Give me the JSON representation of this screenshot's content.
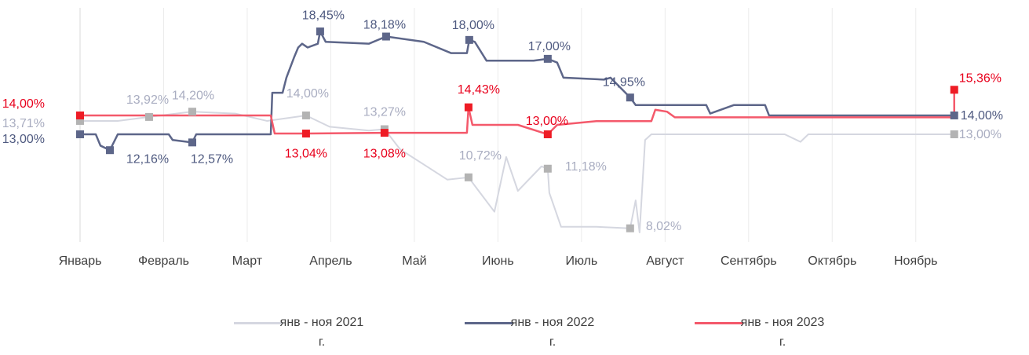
{
  "chart_data": {
    "type": "line",
    "categories": [
      "Январь",
      "Февраль",
      "Март",
      "Апрель",
      "Май",
      "Июнь",
      "Июль",
      "Август",
      "Сентябрь",
      "Октябрь",
      "Ноябрь"
    ],
    "xlim": [
      0,
      10.5
    ],
    "ylim": [
      7.3,
      19.7
    ],
    "grid": true,
    "series": [
      {
        "name": "янв - ноя 2021 г.",
        "color": "#d5d7e0",
        "marker_color": "#b3b3b3",
        "label_color": "#a9adc1",
        "x": [
          0,
          0.451,
          0.826,
          1.343,
          1.858,
          2.235,
          2.704,
          2.986,
          3.455,
          3.643,
          3.831,
          4.113,
          4.394,
          4.648,
          4.77,
          4.958,
          5.099,
          5.239,
          5.521,
          5.596,
          5.615,
          5.756,
          6.178,
          6.582,
          6.648,
          6.695,
          6.761,
          6.836,
          8.432,
          8.62,
          8.714,
          10.46
        ],
        "values": [
          13.71,
          13.71,
          13.92,
          14.2,
          14.1,
          13.71,
          14.0,
          13.4,
          13.2,
          13.27,
          12.2,
          11.4,
          10.6,
          10.72,
          10.0,
          8.9,
          11.8,
          10.0,
          11.3,
          11.18,
          9.9,
          8.1,
          8.1,
          8.02,
          9.5,
          7.8,
          12.7,
          13.0,
          13.0,
          12.6,
          13.0,
          13.0
        ],
        "points": {
          "x": [
            0,
            0.826,
            1.343,
            2.704,
            3.643,
            4.648,
            5.596,
            6.582,
            10.46
          ],
          "values": [
            13.71,
            13.92,
            14.2,
            14.0,
            13.27,
            10.72,
            11.18,
            8.02,
            13.0
          ],
          "value_labels": [
            "13,71%",
            "13,92%",
            "14,20%",
            "14,00%",
            "13,27%",
            "10,72%",
            "11,18%",
            "8,02%",
            "13,00%"
          ]
        }
      },
      {
        "name": "янв - ноя 2022 г.",
        "color": "#5d6689",
        "marker_color": "#5d6689",
        "label_color": "#4f5a80",
        "x": [
          0,
          0.188,
          0.244,
          0.357,
          0.451,
          1.061,
          1.108,
          1.343,
          1.39,
          2.282,
          2.3,
          2.423,
          2.469,
          2.563,
          2.61,
          2.657,
          2.723,
          2.845,
          2.873,
          2.939,
          3.455,
          3.662,
          4.113,
          4.441,
          4.629,
          4.657,
          4.723,
          4.864,
          5.427,
          5.596,
          5.709,
          5.784,
          6.272,
          6.347,
          6.582,
          6.648,
          7.493,
          7.54,
          7.822,
          8.197,
          8.244,
          10.46
        ],
        "values": [
          13.0,
          13.0,
          12.4,
          12.16,
          13.0,
          13.0,
          12.7,
          12.57,
          13.0,
          13.0,
          15.2,
          15.2,
          16.0,
          17.1,
          17.6,
          17.8,
          17.6,
          17.8,
          18.45,
          17.9,
          17.8,
          18.18,
          17.9,
          17.3,
          17.3,
          18.0,
          17.9,
          16.9,
          16.9,
          17.0,
          16.8,
          16.0,
          15.9,
          16.0,
          14.95,
          14.55,
          14.55,
          14.1,
          14.55,
          14.55,
          14.0,
          14.0
        ],
        "points": {
          "x": [
            0,
            0.357,
            1.343,
            2.873,
            3.662,
            4.657,
            5.596,
            6.582,
            10.46
          ],
          "values": [
            13.0,
            12.16,
            12.57,
            18.45,
            18.18,
            18.0,
            17.0,
            14.95,
            14.0
          ],
          "value_labels": [
            "13,00%",
            "12,16%",
            "12,57%",
            "18,45%",
            "18,18%",
            "18,00%",
            "17,00%",
            "14,95%",
            "14,00%"
          ]
        }
      },
      {
        "name": "янв - ноя 2023 г.",
        "color": "#f4596b",
        "marker_color": "#ee1c25",
        "label_color": "#e8001c",
        "x": [
          0,
          2.282,
          2.329,
          2.704,
          3.643,
          4.629,
          4.648,
          4.695,
          5.239,
          5.596,
          5.709,
          6.178,
          6.836,
          6.883,
          7.023,
          7.117,
          10.46,
          10.46
        ],
        "values": [
          14.0,
          14.0,
          13.04,
          13.04,
          13.08,
          13.08,
          14.43,
          13.5,
          13.5,
          13.0,
          13.5,
          13.7,
          13.7,
          14.3,
          14.2,
          13.9,
          13.9,
          15.36
        ],
        "points": {
          "x": [
            0,
            2.704,
            3.643,
            4.648,
            5.596,
            10.46
          ],
          "values": [
            14.0,
            13.04,
            13.08,
            14.43,
            13.0,
            15.36
          ],
          "value_labels": [
            "14,00%",
            "13,04%",
            "13,08%",
            "14,43%",
            "13,00%",
            "15,36%"
          ]
        }
      }
    ]
  }
}
